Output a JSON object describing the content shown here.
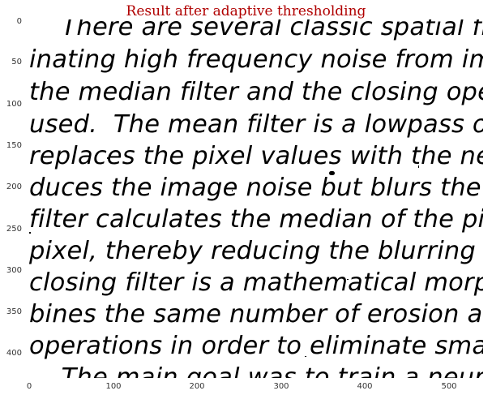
{
  "title": "Result after adaptive thresholding",
  "text_lines": [
    "    There are several classic spatial filters for",
    "inating high frequency noise from images.",
    "the median filter and the closing opening fi",
    "used.  The mean filter is a lowpass or smo",
    "replaces the pixel values with the neighborh",
    "duces the image noise but blurs the image e",
    "filter calculates the median of the pixel neig",
    "pixel, thereby reducing the blurring effect.  F",
    "closing filter is a mathematical morphologic",
    "bines the same number of erosion and dilat",
    "operations in order to eliminate small objec",
    "    The main goal was to train a neural netw"
  ],
  "y_ticks": [
    "0",
    "50",
    "100",
    "150",
    "200",
    "250",
    "300",
    "350",
    "400"
  ],
  "x_ticks": [
    "0",
    "100",
    "200",
    "300",
    "400",
    "500"
  ],
  "colors": {
    "title": "#b00000",
    "text": "#000000",
    "background": "#ffffff"
  }
}
